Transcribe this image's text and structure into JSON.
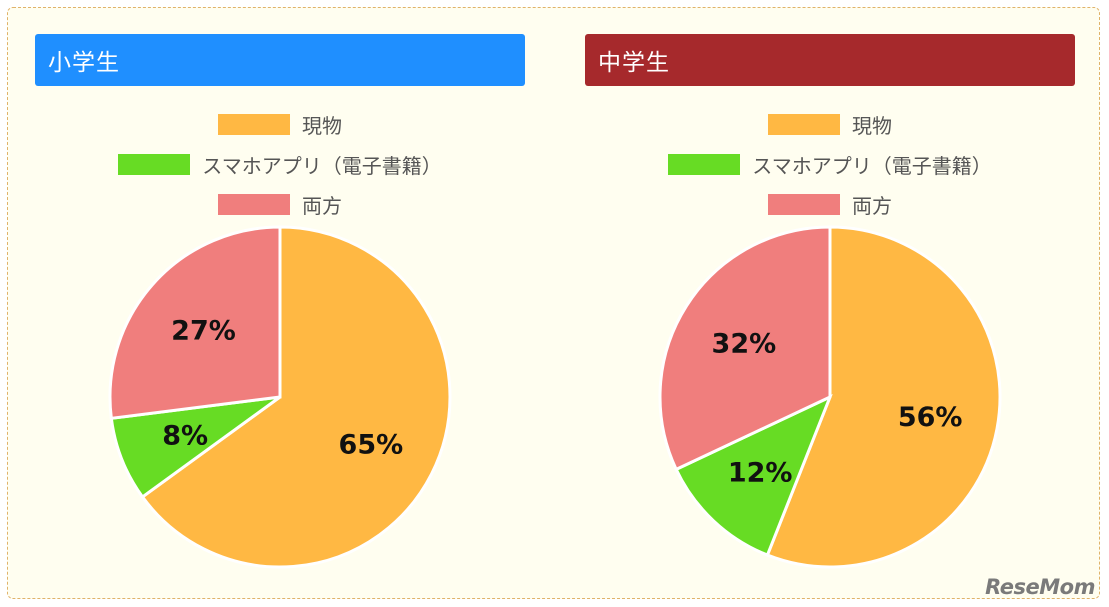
{
  "chart_data": [
    {
      "type": "pie",
      "title": "小学生",
      "header_color": "#1f8fff",
      "categories": [
        "現物",
        "スマホアプリ（電子書籍）",
        "両方"
      ],
      "values": [
        65,
        8,
        27
      ],
      "value_labels": [
        "65%",
        "8%",
        "27%"
      ],
      "colors": [
        "#ffb843",
        "#67dc24",
        "#f07e7d"
      ],
      "legend_position": "top"
    },
    {
      "type": "pie",
      "title": "中学生",
      "header_color": "#a6292c",
      "categories": [
        "現物",
        "スマホアプリ（電子書籍）",
        "両方"
      ],
      "values": [
        56,
        12,
        32
      ],
      "value_labels": [
        "56%",
        "12%",
        "32%"
      ],
      "colors": [
        "#ffb843",
        "#67dc24",
        "#f07e7d"
      ],
      "legend_position": "top"
    }
  ],
  "logo_text": "ReseMom"
}
